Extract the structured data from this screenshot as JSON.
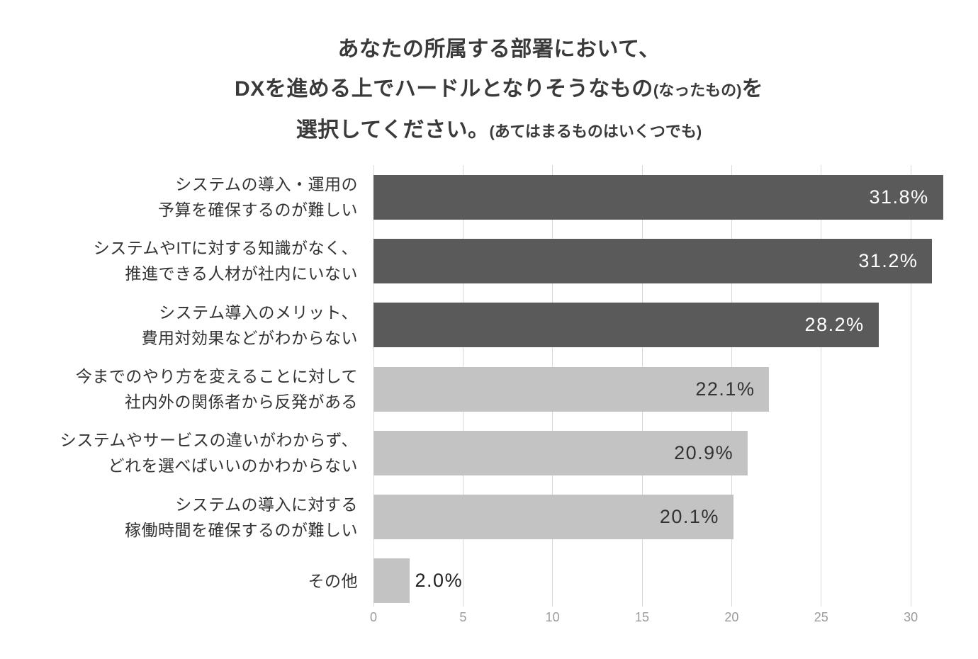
{
  "title": {
    "line1": "あなたの所属する部署において、",
    "line2": {
      "main": "DXを進める上でハードルとなりそうなもの",
      "small": "(なったもの)",
      "tail": "を"
    },
    "line3": {
      "main": "選択してください。",
      "small": "(あてはまるものはいくつでも)"
    }
  },
  "chart_data": {
    "type": "bar",
    "orientation": "horizontal",
    "title": "あなたの所属する部署において、DXを進める上でハードルとなりそうなもの(なったもの)を選択してください。(あてはまるものはいくつでも)",
    "categories": [
      [
        "システムの導入・運用の",
        "予算を確保するのが難しい"
      ],
      [
        "システムやITに対する知識がなく、",
        "推進できる人材が社内にいない"
      ],
      [
        "システム導入のメリット、",
        "費用対効果などがわからない"
      ],
      [
        "今までのやり方を変えることに対して",
        "社内外の関係者から反発がある"
      ],
      [
        "システムやサービスの違いがわからず、",
        "どれを選べばいいのかわからない"
      ],
      [
        "システムの導入に対する",
        "稼働時間を確保するのが難しい"
      ],
      [
        "その他"
      ]
    ],
    "values": [
      31.8,
      31.2,
      28.2,
      22.1,
      20.9,
      20.1,
      2.0
    ],
    "value_labels": [
      "31.8%",
      "31.2%",
      "28.2%",
      "22.1%",
      "20.9%",
      "20.1%",
      "2.0%"
    ],
    "bar_styles": [
      "dark",
      "dark",
      "dark",
      "light",
      "light",
      "light",
      "light"
    ],
    "value_label_placement": [
      "inside",
      "inside",
      "inside",
      "inside",
      "inside",
      "inside",
      "outside"
    ],
    "xlabel": "",
    "ylabel": "",
    "xlim": [
      0,
      32
    ],
    "xticks": [
      "0",
      "5",
      "10",
      "15",
      "20",
      "25",
      "30"
    ],
    "grid": true,
    "legend": false,
    "colors": {
      "dark_bar": "#5a5a5a",
      "light_bar": "#c3c3c3",
      "value_on_dark": "#ffffff",
      "value_on_light": "#333333",
      "value_outside": "#222222",
      "grid_line": "#d9d9d9",
      "tick_label": "#9b9b9b",
      "category_label": "#333333",
      "title_text": "#3a3a3a",
      "background": "#ffffff"
    }
  }
}
